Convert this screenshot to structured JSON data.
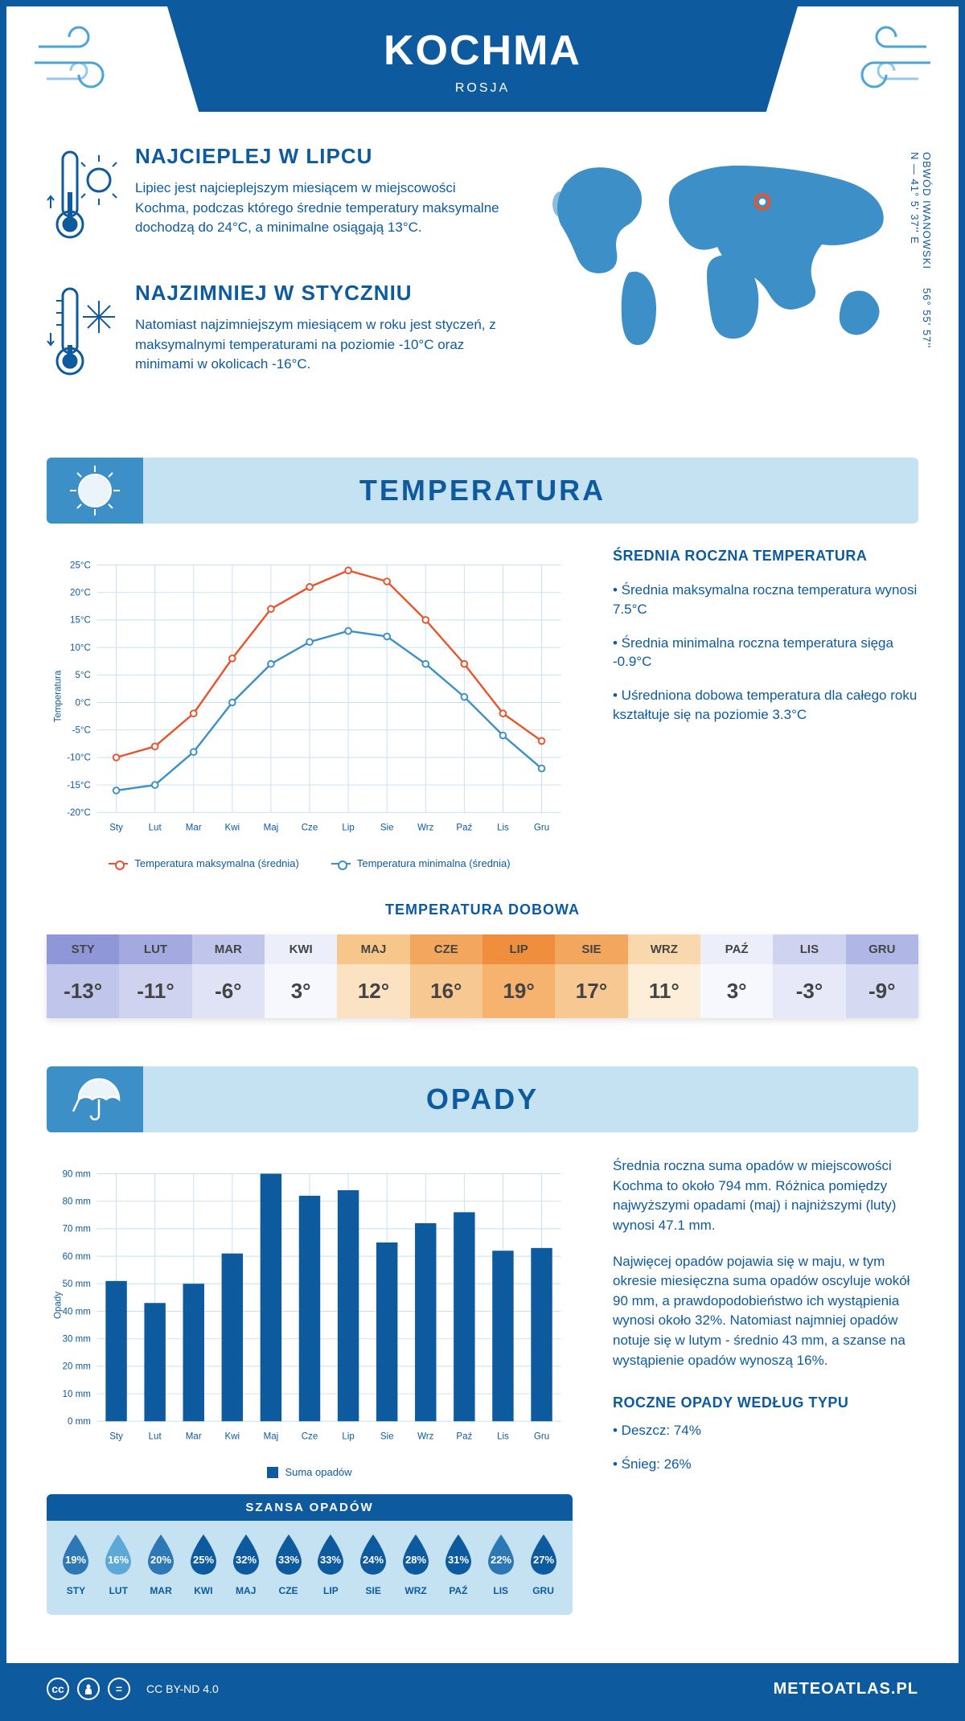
{
  "header": {
    "title": "KOCHMA",
    "country": "ROSJA"
  },
  "coords": "56° 55' 57'' N — 41° 5' 37'' E",
  "region": "OBWÓD IWANOWSKI",
  "warm": {
    "title": "NAJCIEPLEJ W LIPCU",
    "text": "Lipiec jest najcieplejszym miesiącem w miejscowości Kochma, podczas którego średnie temperatury maksymalne dochodzą do 24°C, a minimalne osiągają 13°C."
  },
  "cold": {
    "title": "NAJZIMNIEJ W STYCZNIU",
    "text": "Natomiast najzimniejszym miesiącem w roku jest styczeń, z maksymalnymi temperaturami na poziomie -10°C oraz minimami w okolicach -16°C."
  },
  "tempSection": {
    "title": "TEMPERATURA",
    "sideTitle": "ŚREDNIA ROCZNA TEMPERATURA",
    "items": [
      "• Średnia maksymalna roczna temperatura wynosi 7.5°C",
      "• Średnia minimalna roczna temperatura sięga -0.9°C",
      "• Uśredniona dobowa temperatura dla całego roku kształtuje się na poziomie 3.3°C"
    ],
    "chart": {
      "type": "line",
      "months": [
        "Sty",
        "Lut",
        "Mar",
        "Kwi",
        "Maj",
        "Cze",
        "Lip",
        "Sie",
        "Wrz",
        "Paź",
        "Lis",
        "Gru"
      ],
      "max": [
        -10,
        -8,
        -2,
        8,
        17,
        21,
        24,
        22,
        15,
        7,
        -2,
        -7
      ],
      "min": [
        -16,
        -15,
        -9,
        0,
        7,
        11,
        13,
        12,
        7,
        1,
        -6,
        -12
      ],
      "max_color": "#e8532b",
      "min_color": "#3d8fc8",
      "ylim": [
        -20,
        25
      ],
      "ytick_step": 5,
      "y_suffix": "°C",
      "grid_color": "#c4e2f2",
      "line_width": 2.5,
      "marker_size": 4,
      "legend_max": "Temperatura maksymalna (średnia)",
      "legend_min": "Temperatura minimalna (średnia)",
      "y_label": "Temperatura"
    }
  },
  "dailyTemp": {
    "title": "TEMPERATURA DOBOWA",
    "months": [
      "STY",
      "LUT",
      "MAR",
      "KWI",
      "MAJ",
      "CZE",
      "LIP",
      "SIE",
      "WRZ",
      "PAŹ",
      "LIS",
      "GRU"
    ],
    "values": [
      "-13°",
      "-11°",
      "-6°",
      "3°",
      "12°",
      "16°",
      "19°",
      "17°",
      "11°",
      "3°",
      "-3°",
      "-9°"
    ],
    "head_colors": [
      "#9097d8",
      "#a4aae0",
      "#c0c5eb",
      "#eceef9",
      "#f7c68b",
      "#f3a75e",
      "#ef8f3d",
      "#f3a75e",
      "#f9d8ae",
      "#eceef9",
      "#cfd3f0",
      "#b0b6e6"
    ],
    "val_colors": [
      "#c0c5eb",
      "#cfd3f0",
      "#e0e3f5",
      "#f7f8fd",
      "#fbe2c3",
      "#f8c893",
      "#f5b36f",
      "#f8c893",
      "#fceed9",
      "#f7f8fd",
      "#e7e9f8",
      "#d5d9f2"
    ]
  },
  "precipSection": {
    "title": "OPADY",
    "text1": "Średnia roczna suma opadów w miejscowości Kochma to około 794 mm. Różnica pomiędzy najwyższymi opadami (maj) i najniższymi (luty) wynosi 47.1 mm.",
    "text2": "Najwięcej opadów pojawia się w maju, w tym okresie miesięczna suma opadów oscyluje wokół 90 mm, a prawdopodobieństwo ich wystąpienia wynosi około 32%. Natomiast najmniej opadów notuje się w lutym - średnio 43 mm, a szanse na wystąpienie opadów wynoszą 16%.",
    "typeTitle": "ROCZNE OPADY WEDŁUG TYPU",
    "rain": "• Deszcz: 74%",
    "snow": "• Śnieg: 26%",
    "chart": {
      "type": "bar",
      "months": [
        "Sty",
        "Lut",
        "Mar",
        "Kwi",
        "Maj",
        "Cze",
        "Lip",
        "Sie",
        "Wrz",
        "Paź",
        "Lis",
        "Gru"
      ],
      "values": [
        51,
        43,
        50,
        61,
        90,
        82,
        84,
        65,
        72,
        76,
        62,
        63
      ],
      "bar_color": "#0d5a9e",
      "ylim": [
        0,
        90
      ],
      "ytick_step": 10,
      "y_suffix": " mm",
      "grid_color": "#c4e2f2",
      "bar_width": 0.55,
      "legend": "Suma opadów",
      "y_label": "Opady"
    }
  },
  "chance": {
    "title": "SZANSA OPADÓW",
    "months": [
      "STY",
      "LUT",
      "MAR",
      "KWI",
      "MAJ",
      "CZE",
      "LIP",
      "SIE",
      "WRZ",
      "PAŹ",
      "LIS",
      "GRU"
    ],
    "pct": [
      19,
      16,
      20,
      25,
      32,
      33,
      33,
      24,
      28,
      31,
      22,
      27
    ],
    "light_color": "#5ca9d8",
    "dark_color": "#0d5a9e"
  },
  "footer": {
    "license": "CC BY-ND 4.0",
    "brand": "METEOATLAS.PL"
  },
  "colors": {
    "primary": "#0d5a9e",
    "light": "#c4e2f2",
    "accent": "#3d8fc8"
  }
}
